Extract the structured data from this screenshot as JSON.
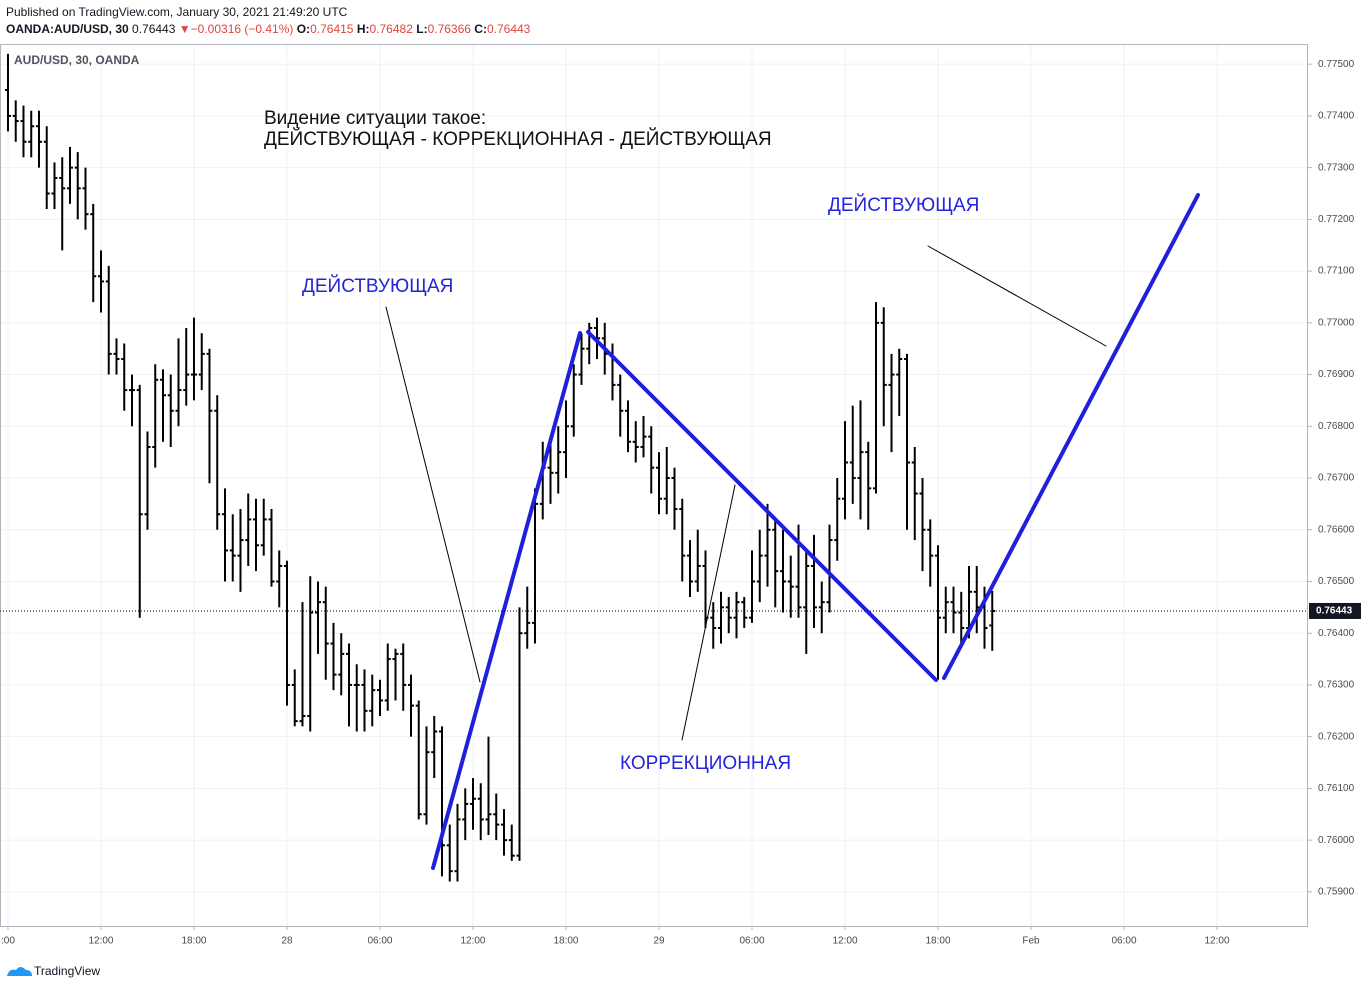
{
  "header": {
    "published": "Published on TradingView.com, January 30, 2021 21:49:20 UTC",
    "symbol": "OANDA:AUD/USD, 30",
    "last": "0.76443",
    "arrow": "▼",
    "change": "−0.00316 (−0.41%)",
    "o_label": "O:",
    "o": "0.76415",
    "h_label": "H:",
    "h": "0.76482",
    "l_label": "L:",
    "l": "0.76366",
    "c_label": "C:",
    "c": "0.76443"
  },
  "footer": {
    "brand": "TradingView"
  },
  "chart_data": {
    "type": "ohlc",
    "legend": "AUD/USD, 30, OANDA",
    "color": "#000000",
    "grid": true,
    "title": "Видение ситуации такое:",
    "subtitle": "ДЕЙСТВУЮЩАЯ - КОРРЕКЦИОННАЯ - ДЕЙСТВУЮЩАЯ",
    "annotations": [
      "ДЕЙСТВУЮЩАЯ",
      "КОРРЕКЦИОННАЯ",
      "ДЕЙСТВУЮЩАЯ"
    ],
    "current_price": 0.76443,
    "xlim": [
      -1.03,
      167.74
    ],
    "xticks": [
      {
        "value": 0,
        "label": ":00"
      },
      {
        "value": 12,
        "label": "12:00"
      },
      {
        "value": 24,
        "label": "18:00"
      },
      {
        "value": 36,
        "label": "28"
      },
      {
        "value": 48,
        "label": "06:00"
      },
      {
        "value": 60,
        "label": "12:00"
      },
      {
        "value": 72,
        "label": "18:00"
      },
      {
        "value": 84,
        "label": "29"
      },
      {
        "value": 96,
        "label": "06:00"
      },
      {
        "value": 108,
        "label": "12:00"
      },
      {
        "value": 120,
        "label": "18:00"
      },
      {
        "value": 132,
        "label": "Feb"
      },
      {
        "value": 144,
        "label": "06:00"
      },
      {
        "value": 156,
        "label": "12:00"
      }
    ],
    "ylim": [
      0.75834,
      0.77539
    ],
    "yticks": [
      {
        "value": 0.759,
        "label": "0.75900"
      },
      {
        "value": 0.76,
        "label": "0.76000"
      },
      {
        "value": 0.761,
        "label": "0.76100"
      },
      {
        "value": 0.762,
        "label": "0.76200"
      },
      {
        "value": 0.763,
        "label": "0.76300"
      },
      {
        "value": 0.764,
        "label": "0.76400"
      },
      {
        "value": 0.765,
        "label": "0.76500"
      },
      {
        "value": 0.766,
        "label": "0.76600"
      },
      {
        "value": 0.767,
        "label": "0.76700"
      },
      {
        "value": 0.768,
        "label": "0.76800"
      },
      {
        "value": 0.769,
        "label": "0.76900"
      },
      {
        "value": 0.77,
        "label": "0.77000"
      },
      {
        "value": 0.771,
        "label": "0.77100"
      },
      {
        "value": 0.772,
        "label": "0.77200"
      },
      {
        "value": 0.773,
        "label": "0.77300"
      },
      {
        "value": 0.774,
        "label": "0.77400"
      },
      {
        "value": 0.775,
        "label": "0.77500"
      }
    ],
    "open": [
      0.7745,
      0.774,
      0.7739,
      0.7735,
      0.7738,
      0.7735,
      0.7725,
      0.7728,
      0.7726,
      0.773,
      0.7726,
      0.7721,
      0.7709,
      0.7708,
      0.7694,
      0.7693,
      0.7687,
      0.7687,
      0.7663,
      0.7676,
      0.7689,
      0.7686,
      0.7683,
      0.7687,
      0.769,
      0.769,
      0.7694,
      0.7683,
      0.7663,
      0.7656,
      0.7655,
      0.7658,
      0.7662,
      0.7657,
      0.7662,
      0.765,
      0.7653,
      0.763,
      0.7623,
      0.7624,
      0.7644,
      0.7646,
      0.7638,
      0.7632,
      0.7636,
      0.763,
      0.763,
      0.7625,
      0.7629,
      0.7627,
      0.7635,
      0.7636,
      0.763,
      0.7626,
      0.7605,
      0.7617,
      0.7621,
      0.7599,
      0.7594,
      0.7604,
      0.7607,
      0.7608,
      0.7604,
      0.7605,
      0.7603,
      0.76,
      0.7597,
      0.764,
      0.7642,
      0.7665,
      0.7672,
      0.7671,
      0.7675,
      0.768,
      0.769,
      0.7695,
      0.7699,
      0.7697,
      0.7694,
      0.7688,
      0.7683,
      0.7677,
      0.7676,
      0.7678,
      0.7672,
      0.7666,
      0.767,
      0.7664,
      0.7655,
      0.765,
      0.7653,
      0.7643,
      0.7641,
      0.7645,
      0.7643,
      0.7646,
      0.7643,
      0.765,
      0.7655,
      0.766,
      0.7652,
      0.765,
      0.7649,
      0.7645,
      0.7653,
      0.7645,
      0.7646,
      0.7658,
      0.7666,
      0.7673,
      0.767,
      0.7675,
      0.7668,
      0.77,
      0.7688,
      0.769,
      0.7693,
      0.7673,
      0.7667,
      0.766,
      0.7655,
      0.7643,
      0.7646,
      0.7644,
      0.7641,
      0.7648,
      0.7645,
      0.76415
    ],
    "high": [
      0.7752,
      0.7743,
      0.7742,
      0.7741,
      0.7741,
      0.7738,
      0.7731,
      0.7732,
      0.7734,
      0.7733,
      0.773,
      0.7723,
      0.7714,
      0.7711,
      0.7697,
      0.7696,
      0.769,
      0.7688,
      0.7679,
      0.7692,
      0.7691,
      0.769,
      0.7697,
      0.7699,
      0.7701,
      0.7698,
      0.7695,
      0.7686,
      0.7668,
      0.7663,
      0.7664,
      0.7667,
      0.7666,
      0.7666,
      0.7664,
      0.7656,
      0.7654,
      0.7633,
      0.7646,
      0.7651,
      0.765,
      0.7649,
      0.7642,
      0.764,
      0.7638,
      0.7634,
      0.7633,
      0.7632,
      0.7631,
      0.7638,
      0.7637,
      0.7638,
      0.7632,
      0.7627,
      0.7622,
      0.7624,
      0.7622,
      0.7603,
      0.7607,
      0.761,
      0.7612,
      0.7611,
      0.762,
      0.7609,
      0.7606,
      0.7603,
      0.7645,
      0.7649,
      0.7668,
      0.7677,
      0.7677,
      0.768,
      0.7685,
      0.7692,
      0.7698,
      0.77,
      0.7701,
      0.77,
      0.7696,
      0.769,
      0.7685,
      0.7681,
      0.7682,
      0.768,
      0.7675,
      0.7676,
      0.7672,
      0.7666,
      0.7658,
      0.766,
      0.7656,
      0.7646,
      0.7648,
      0.7647,
      0.7648,
      0.7647,
      0.7656,
      0.766,
      0.7665,
      0.7662,
      0.766,
      0.7655,
      0.7661,
      0.7656,
      0.7659,
      0.765,
      0.7661,
      0.767,
      0.7681,
      0.7684,
      0.7685,
      0.7677,
      0.7704,
      0.7703,
      0.7694,
      0.7695,
      0.7694,
      0.7676,
      0.767,
      0.7662,
      0.7657,
      0.7649,
      0.7649,
      0.7648,
      0.7653,
      0.7653,
      0.7649,
      0.76482
    ],
    "low": [
      0.7737,
      0.7735,
      0.7732,
      0.7732,
      0.773,
      0.7722,
      0.7722,
      0.7714,
      0.7723,
      0.772,
      0.7718,
      0.7704,
      0.7702,
      0.769,
      0.769,
      0.7683,
      0.768,
      0.7643,
      0.766,
      0.7672,
      0.7677,
      0.7676,
      0.768,
      0.7684,
      0.7685,
      0.7687,
      0.7669,
      0.766,
      0.765,
      0.765,
      0.7648,
      0.7653,
      0.7652,
      0.7655,
      0.7649,
      0.7645,
      0.7626,
      0.7622,
      0.7622,
      0.7621,
      0.7636,
      0.7631,
      0.7629,
      0.7628,
      0.7622,
      0.7621,
      0.7621,
      0.7622,
      0.7624,
      0.7625,
      0.7627,
      0.7625,
      0.762,
      0.7604,
      0.7603,
      0.7612,
      0.7593,
      0.7592,
      0.7592,
      0.76,
      0.7602,
      0.76,
      0.7601,
      0.76,
      0.7597,
      0.7596,
      0.7596,
      0.7637,
      0.7638,
      0.7662,
      0.7665,
      0.7667,
      0.767,
      0.7678,
      0.7688,
      0.7692,
      0.7693,
      0.769,
      0.7685,
      0.7678,
      0.7675,
      0.7673,
      0.7674,
      0.7667,
      0.7663,
      0.7663,
      0.766,
      0.765,
      0.7647,
      0.7648,
      0.7641,
      0.7637,
      0.7638,
      0.764,
      0.7639,
      0.7641,
      0.7642,
      0.7646,
      0.7649,
      0.7645,
      0.7644,
      0.7643,
      0.7643,
      0.7636,
      0.7641,
      0.764,
      0.7644,
      0.7654,
      0.7662,
      0.7665,
      0.7662,
      0.766,
      0.7667,
      0.768,
      0.7675,
      0.7682,
      0.766,
      0.7658,
      0.7652,
      0.7649,
      0.7631,
      0.764,
      0.764,
      0.7638,
      0.7639,
      0.764,
      0.7637,
      0.76366
    ],
    "close": [
      0.774,
      0.7739,
      0.7735,
      0.7738,
      0.7735,
      0.7725,
      0.7728,
      0.7726,
      0.773,
      0.7726,
      0.7721,
      0.7709,
      0.7708,
      0.7694,
      0.7693,
      0.7687,
      0.7687,
      0.7663,
      0.7676,
      0.7689,
      0.7686,
      0.7683,
      0.7687,
      0.769,
      0.769,
      0.7694,
      0.7683,
      0.7663,
      0.7656,
      0.7655,
      0.7658,
      0.7662,
      0.7657,
      0.7662,
      0.765,
      0.7653,
      0.763,
      0.7623,
      0.7624,
      0.7644,
      0.7646,
      0.7638,
      0.7632,
      0.7636,
      0.763,
      0.763,
      0.7625,
      0.7629,
      0.7627,
      0.7635,
      0.7636,
      0.763,
      0.7626,
      0.7605,
      0.7617,
      0.7621,
      0.7599,
      0.7594,
      0.7604,
      0.7607,
      0.7608,
      0.7604,
      0.7605,
      0.7603,
      0.76,
      0.7597,
      0.764,
      0.7642,
      0.7665,
      0.7672,
      0.7671,
      0.7675,
      0.768,
      0.769,
      0.7695,
      0.7699,
      0.7697,
      0.7694,
      0.7688,
      0.7683,
      0.7677,
      0.7676,
      0.7678,
      0.7672,
      0.7666,
      0.767,
      0.7664,
      0.7655,
      0.765,
      0.7653,
      0.7643,
      0.7641,
      0.7645,
      0.7643,
      0.7646,
      0.7643,
      0.765,
      0.7655,
      0.766,
      0.7652,
      0.765,
      0.7649,
      0.7645,
      0.7653,
      0.7645,
      0.7646,
      0.7658,
      0.7666,
      0.7673,
      0.767,
      0.7675,
      0.7668,
      0.77,
      0.7688,
      0.769,
      0.7693,
      0.7673,
      0.7667,
      0.766,
      0.7655,
      0.7643,
      0.7646,
      0.7644,
      0.7641,
      0.7648,
      0.7645,
      0.7641,
      0.76443
    ]
  }
}
